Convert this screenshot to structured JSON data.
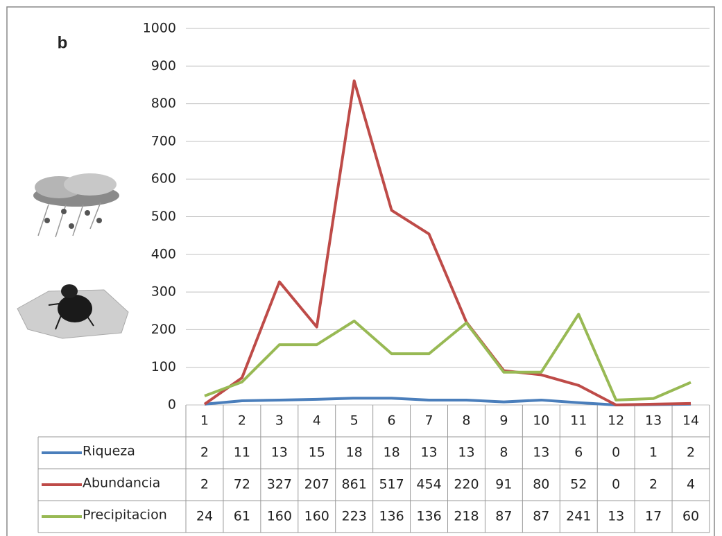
{
  "chart_data": {
    "type": "line",
    "title": "b",
    "categories": [
      "1",
      "2",
      "3",
      "4",
      "5",
      "6",
      "7",
      "8",
      "9",
      "10",
      "11",
      "12",
      "13",
      "14"
    ],
    "series": [
      {
        "name": "Riqueza",
        "color": "#4a7ebb",
        "values": [
          2,
          11,
          13,
          15,
          18,
          18,
          13,
          13,
          8,
          13,
          6,
          0,
          1,
          2
        ]
      },
      {
        "name": "Abundancia",
        "color": "#be4b48",
        "values": [
          2,
          72,
          327,
          207,
          861,
          517,
          454,
          220,
          91,
          80,
          52,
          0,
          2,
          4
        ]
      },
      {
        "name": "Precipitacion",
        "color": "#98b954",
        "values": [
          24,
          61,
          160,
          160,
          223,
          136,
          136,
          218,
          87,
          87,
          241,
          13,
          17,
          60
        ]
      }
    ],
    "ylim": [
      0,
      1000
    ],
    "yticks": [
      0,
      100,
      200,
      300,
      400,
      500,
      600,
      700,
      800,
      900,
      1000
    ],
    "grid": true
  }
}
